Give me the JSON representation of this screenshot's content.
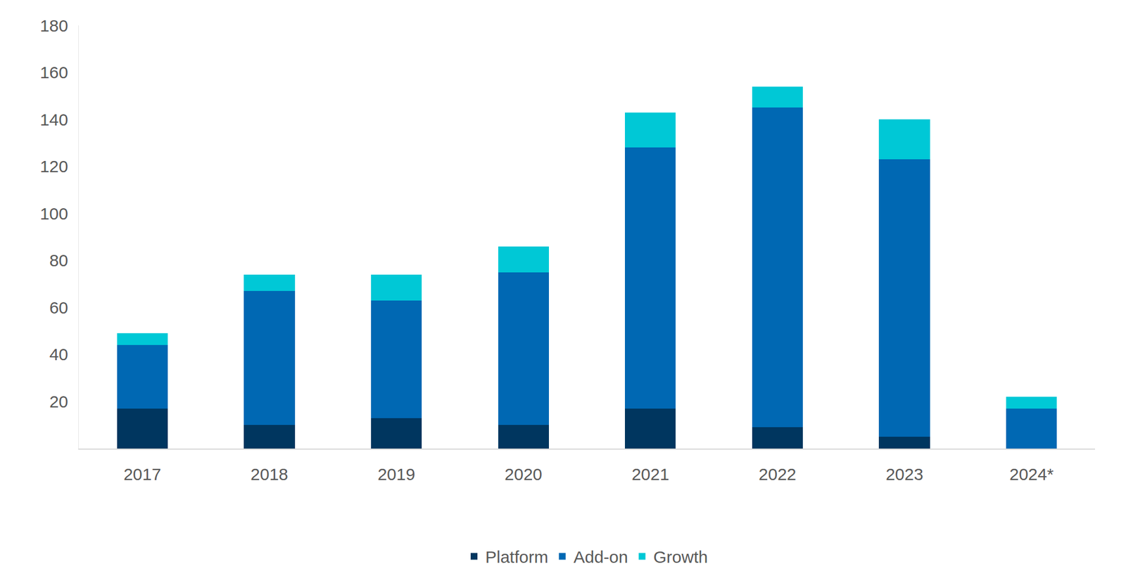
{
  "chart_data": {
    "type": "bar",
    "stacked": true,
    "grid": false,
    "legend": "bottom",
    "categories": [
      "2017",
      "2018",
      "2019",
      "2020",
      "2021",
      "2022",
      "2023",
      "2024*"
    ],
    "series": [
      {
        "name": "Platform",
        "color": "#00365f",
        "values": [
          17,
          10,
          13,
          10,
          17,
          9,
          5,
          0
        ]
      },
      {
        "name": "Add-on",
        "color": "#0068b3",
        "values": [
          27,
          57,
          50,
          65,
          111,
          136,
          118,
          17
        ]
      },
      {
        "name": "Growth",
        "color": "#00c8d6",
        "values": [
          5,
          7,
          11,
          11,
          15,
          9,
          17,
          5
        ]
      }
    ],
    "ylim": [
      0,
      180
    ],
    "yticks": [
      20,
      40,
      60,
      80,
      100,
      120,
      140,
      160,
      180
    ]
  }
}
